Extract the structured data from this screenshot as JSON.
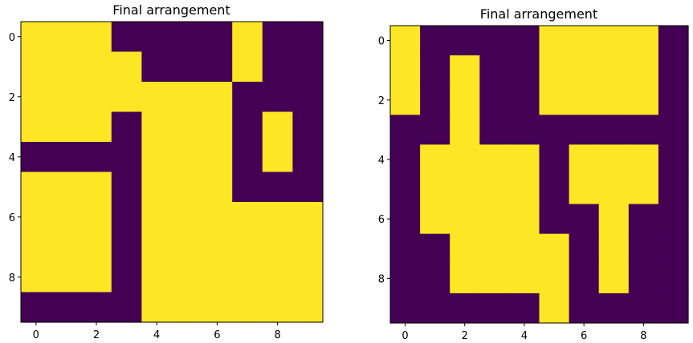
{
  "colors": {
    "off": "#440154",
    "on": "#fde725",
    "axis": "#000000"
  },
  "chart_data": [
    {
      "type": "heatmap",
      "title": "Final arrangement",
      "xlabel": "",
      "ylabel": "",
      "xticks": [
        0,
        2,
        4,
        6,
        8
      ],
      "yticks": [
        0,
        2,
        4,
        6,
        8
      ],
      "xtick_labels": [
        "0",
        "2",
        "4",
        "6",
        "8"
      ],
      "ytick_labels": [
        "0",
        "2",
        "4",
        "6",
        "8"
      ],
      "xlim": [
        -0.5,
        9.5
      ],
      "ylim": [
        9.5,
        -0.5
      ],
      "grid": false,
      "values": [
        [
          1,
          1,
          1,
          0,
          0,
          0,
          0,
          1,
          0,
          0
        ],
        [
          1,
          1,
          1,
          1,
          0,
          0,
          0,
          1,
          0,
          0
        ],
        [
          1,
          1,
          1,
          1,
          1,
          1,
          1,
          0,
          0,
          0
        ],
        [
          1,
          1,
          1,
          0,
          1,
          1,
          1,
          0,
          1,
          0
        ],
        [
          0,
          0,
          0,
          0,
          1,
          1,
          1,
          0,
          1,
          0
        ],
        [
          1,
          1,
          1,
          0,
          1,
          1,
          1,
          0,
          0,
          0
        ],
        [
          1,
          1,
          1,
          0,
          1,
          1,
          1,
          1,
          1,
          1
        ],
        [
          1,
          1,
          1,
          0,
          1,
          1,
          1,
          1,
          1,
          1
        ],
        [
          1,
          1,
          1,
          0,
          1,
          1,
          1,
          1,
          1,
          1
        ],
        [
          0,
          0,
          0,
          0,
          1,
          1,
          1,
          1,
          1,
          1
        ]
      ]
    },
    {
      "type": "heatmap",
      "title": "Final arrangement",
      "xlabel": "",
      "ylabel": "",
      "xticks": [
        0,
        2,
        4,
        6,
        8
      ],
      "yticks": [
        0,
        2,
        4,
        6,
        8
      ],
      "xtick_labels": [
        "0",
        "2",
        "4",
        "6",
        "8"
      ],
      "ytick_labels": [
        "0",
        "2",
        "4",
        "6",
        "8"
      ],
      "xlim": [
        -0.5,
        9.5
      ],
      "ylim": [
        9.5,
        -0.5
      ],
      "grid": false,
      "values": [
        [
          1,
          0,
          0,
          0,
          0,
          1,
          1,
          1,
          1,
          0
        ],
        [
          1,
          0,
          1,
          0,
          0,
          1,
          1,
          1,
          1,
          0
        ],
        [
          1,
          0,
          1,
          0,
          0,
          1,
          1,
          1,
          1,
          0
        ],
        [
          0,
          0,
          1,
          0,
          0,
          0,
          0,
          0,
          0,
          0
        ],
        [
          0,
          1,
          1,
          1,
          1,
          0,
          1,
          1,
          1,
          0
        ],
        [
          0,
          1,
          1,
          1,
          1,
          0,
          1,
          1,
          1,
          0
        ],
        [
          0,
          1,
          1,
          1,
          1,
          0,
          0,
          1,
          0,
          0
        ],
        [
          0,
          0,
          1,
          1,
          1,
          1,
          0,
          1,
          0,
          0
        ],
        [
          0,
          0,
          1,
          1,
          1,
          1,
          0,
          1,
          0,
          0
        ],
        [
          0,
          0,
          0,
          0,
          0,
          1,
          0,
          0,
          0,
          0
        ]
      ]
    }
  ]
}
